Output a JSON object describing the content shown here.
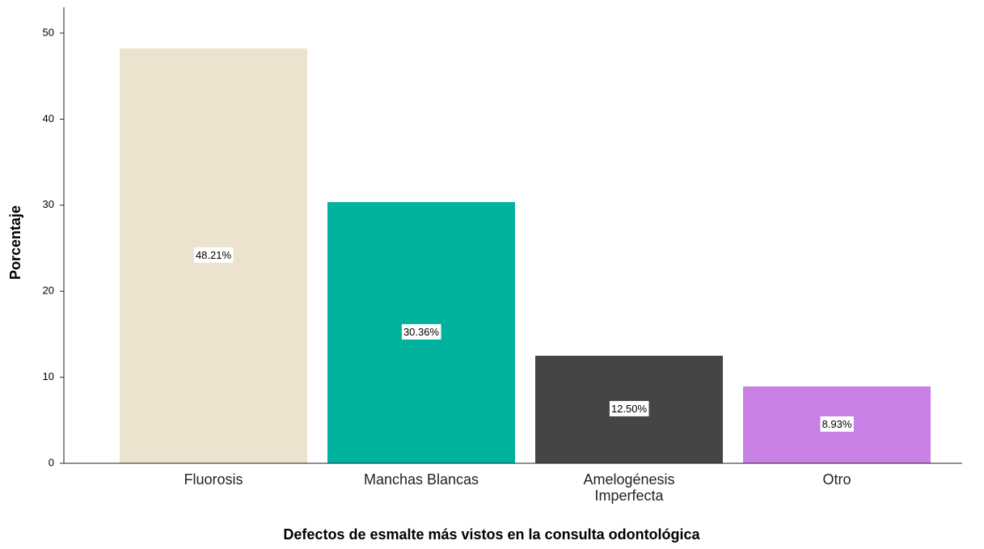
{
  "chart_data": {
    "type": "bar",
    "xlabel": "Defectos de esmalte más vistos en la consulta odontológica",
    "ylabel": "Porcentaje",
    "categories": [
      "Fluorosis",
      "Manchas Blancas",
      "Amelogénesis Imperfecta",
      "Otro"
    ],
    "values": [
      48.21,
      30.36,
      12.5,
      8.93
    ],
    "value_labels": [
      "48.21%",
      "30.36%",
      "12.50%",
      "8.93%"
    ],
    "colors": [
      "#ebe3cd",
      "#00b29e",
      "#434547",
      "#c880e4"
    ],
    "ylim": [
      0,
      53
    ],
    "yticks": [
      0,
      10,
      20,
      30,
      40,
      50
    ],
    "grid": false
  }
}
